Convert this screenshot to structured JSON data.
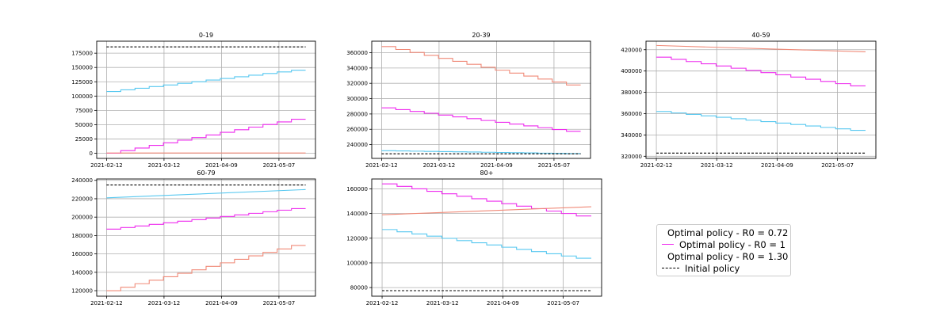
{
  "chart_data": [
    {
      "type": "line",
      "title": "0-19",
      "x": [
        "2021-02-12",
        "2021-05-20"
      ],
      "xticks": [
        "2021-02-12",
        "2021-03-12",
        "2021-04-09",
        "2021-05-07"
      ],
      "yticks": [
        "0",
        "25000",
        "50000",
        "75000",
        "100000",
        "125000",
        "150000",
        "175000"
      ],
      "ylim": [
        -9000,
        196000
      ],
      "grid": true,
      "series": [
        {
          "name": "Optimal policy - R0 = 0.72",
          "values": [
            108000,
            148000
          ],
          "steps": 14
        },
        {
          "name": "Optimal policy - R0 = 1",
          "values": [
            0,
            64000
          ],
          "steps": 14
        },
        {
          "name": "Optimal policy - R0 = 1.30",
          "values": [
            500,
            500
          ],
          "steps": 0
        },
        {
          "name": "Initial policy",
          "values": [
            186000,
            186000
          ],
          "steps": 0
        }
      ]
    },
    {
      "type": "line",
      "title": "20-39",
      "x": [
        "2021-02-12",
        "2021-05-20"
      ],
      "xticks": [
        "2021-02-12",
        "2021-03-12",
        "2021-04-09",
        "2021-05-07"
      ],
      "yticks": [
        "240000",
        "260000",
        "280000",
        "300000",
        "320000",
        "340000",
        "360000"
      ],
      "ylim": [
        222000,
        375000
      ],
      "grid": true,
      "series": [
        {
          "name": "Optimal policy - R0 = 0.72",
          "values": [
            232000,
            228000
          ],
          "steps": 14
        },
        {
          "name": "Optimal policy - R0 = 1",
          "values": [
            288000,
            255000
          ],
          "steps": 14
        },
        {
          "name": "Optimal policy - R0 = 1.30",
          "values": [
            368000,
            314000
          ],
          "steps": 14
        },
        {
          "name": "Initial policy",
          "values": [
            228000,
            228000
          ],
          "steps": 0
        }
      ]
    },
    {
      "type": "line",
      "title": "40-59",
      "x": [
        "2021-02-12",
        "2021-05-20"
      ],
      "xticks": [
        "2021-02-12",
        "2021-03-12",
        "2021-04-09",
        "2021-05-07"
      ],
      "yticks": [
        "320000",
        "340000",
        "360000",
        "380000",
        "400000",
        "420000"
      ],
      "ylim": [
        318000,
        428000
      ],
      "grid": true,
      "series": [
        {
          "name": "Optimal policy - R0 = 0.72",
          "values": [
            362000,
            343000
          ],
          "steps": 14
        },
        {
          "name": "Optimal policy - R0 = 1",
          "values": [
            413000,
            384000
          ],
          "steps": 14
        },
        {
          "name": "Optimal policy - R0 = 1.30",
          "values": [
            424000,
            418000
          ],
          "steps": 0
        },
        {
          "name": "Initial policy",
          "values": [
            323000,
            323000
          ],
          "steps": 0
        }
      ]
    },
    {
      "type": "line",
      "title": "60-79",
      "x": [
        "2021-02-12",
        "2021-05-20"
      ],
      "xticks": [
        "2021-02-12",
        "2021-03-12",
        "2021-04-09",
        "2021-05-07"
      ],
      "yticks": [
        "120000",
        "140000",
        "160000",
        "180000",
        "200000",
        "220000",
        "240000"
      ],
      "ylim": [
        114000,
        241500
      ],
      "grid": true,
      "series": [
        {
          "name": "Optimal policy - R0 = 0.72",
          "values": [
            221000,
            230000
          ],
          "steps": 0
        },
        {
          "name": "Optimal policy - R0 = 1",
          "values": [
            187000,
            211000
          ],
          "steps": 14
        },
        {
          "name": "Optimal policy - R0 = 1.30",
          "values": [
            120000,
            173000
          ],
          "steps": 14
        },
        {
          "name": "Initial policy",
          "values": [
            235000,
            235000
          ],
          "steps": 0
        }
      ]
    },
    {
      "type": "line",
      "title": "80+",
      "x": [
        "2021-02-12",
        "2021-05-20"
      ],
      "xticks": [
        "2021-02-12",
        "2021-03-12",
        "2021-04-09",
        "2021-05-07"
      ],
      "yticks": [
        "80000",
        "100000",
        "120000",
        "140000",
        "160000"
      ],
      "ylim": [
        73000,
        168000
      ],
      "grid": true,
      "series": [
        {
          "name": "Optimal policy - R0 = 0.72",
          "values": [
            127000,
            102000
          ],
          "steps": 14
        },
        {
          "name": "Optimal policy - R0 = 1",
          "values": [
            164000,
            136000
          ],
          "steps": 14
        },
        {
          "name": "Optimal policy - R0 = 1.30",
          "values": [
            139000,
            145500
          ],
          "steps": 0
        },
        {
          "name": "Initial policy",
          "values": [
            77500,
            77500
          ],
          "steps": 0
        }
      ]
    }
  ],
  "legend": {
    "placement": "bottom-right",
    "items": [
      {
        "label": "Optimal policy - R0 = 0.72",
        "color": "#57c8f0",
        "dash": false
      },
      {
        "label": "Optimal policy - R0 = 1",
        "color": "#ee2bee",
        "dash": false
      },
      {
        "label": "Optimal policy - R0 = 1.30",
        "color": "#f08a78",
        "dash": false
      },
      {
        "label": "Initial policy",
        "color": "#000000",
        "dash": true
      }
    ]
  }
}
